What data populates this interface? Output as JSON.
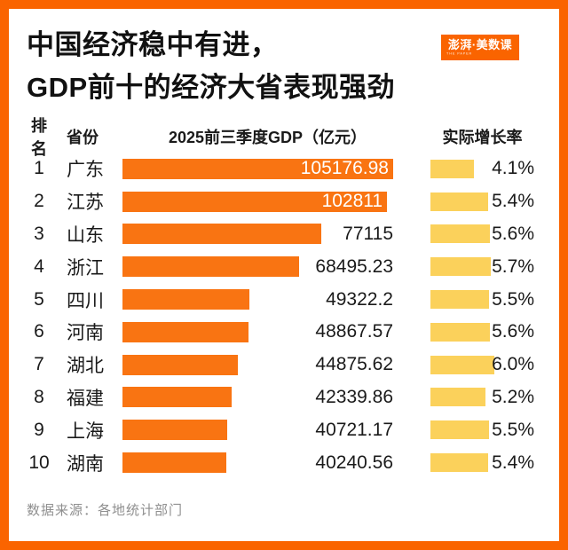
{
  "title": {
    "line1": "中国经济稳中有进，",
    "line2": "GDP前十的经济大省表现强劲"
  },
  "logo": {
    "text": "澎湃·美数课",
    "subtext": "THE PAPER"
  },
  "table": {
    "headers": {
      "rank": "排名",
      "province": "省份",
      "gdp": "2025前三季度GDP（亿元）",
      "growth": "实际增长率"
    }
  },
  "chart_data": {
    "type": "bar",
    "orientation": "horizontal",
    "title": "中国经济稳中有进，GDP前十的经济大省表现强劲",
    "categories": [
      "广东",
      "江苏",
      "山东",
      "浙江",
      "四川",
      "河南",
      "湖北",
      "福建",
      "上海",
      "湖南"
    ],
    "ranks": [
      "1",
      "2",
      "3",
      "4",
      "5",
      "6",
      "7",
      "8",
      "9",
      "10"
    ],
    "series": [
      {
        "name": "2025前三季度GDP（亿元）",
        "values": [
          105176.98,
          102811,
          77115,
          68495.23,
          49322.2,
          48867.57,
          44875.62,
          42339.86,
          40721.17,
          40240.56
        ],
        "labels": [
          "105176.98",
          "102811",
          "77115",
          "68495.23",
          "49322.2",
          "48867.57",
          "44875.62",
          "42339.86",
          "40721.17",
          "40240.56"
        ],
        "label_inside": [
          true,
          true,
          false,
          false,
          false,
          false,
          false,
          false,
          false,
          false
        ],
        "axis_max": 105176.98,
        "color": "#F97412"
      },
      {
        "name": "实际增长率",
        "values": [
          4.1,
          5.4,
          5.6,
          5.7,
          5.5,
          5.6,
          6.0,
          5.2,
          5.5,
          5.4
        ],
        "labels": [
          "4.1%",
          "5.4%",
          "5.6%",
          "5.7%",
          "5.5%",
          "5.6%",
          "6.0%",
          "5.2%",
          "5.5%",
          "5.4%"
        ],
        "axis_max": 6.0,
        "color": "#FBD15B"
      }
    ]
  },
  "footer": {
    "source": "数据来源：各地统计部门"
  },
  "colors": {
    "frame": "#FA6400",
    "gdp_bar": "#F97412",
    "growth_bar": "#FBD15B",
    "text": "#1a1a1a",
    "muted": "#8f8f8f"
  }
}
